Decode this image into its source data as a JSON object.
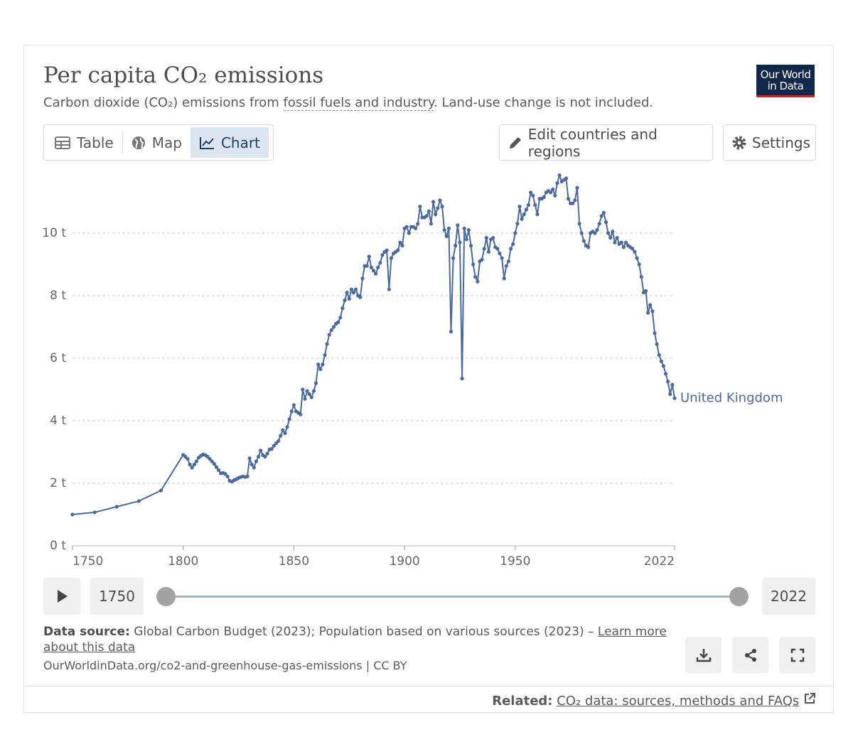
{
  "header": {
    "title": "Per capita CO₂ emissions",
    "subtitle_start": "Carbon dioxide (CO₂) emissions from ",
    "subtitle_link": "fossil fuels and industry",
    "subtitle_end": ". Land-use change is not included.",
    "logo": [
      "Our World",
      "in Data"
    ]
  },
  "tabs": [
    "Table",
    "Map",
    "Chart"
  ],
  "buttons": [
    "Edit countries and regions",
    "Settings"
  ],
  "timeline": {
    "start": 1750,
    "end": 2022
  },
  "footer": {
    "source_label": "Data source:",
    "source_text": "Global Carbon Budget (2023); Population based on various sources (2023) – ",
    "learn_more": "Learn more about this data",
    "url": "OurWorldinData.org/co2-and-greenhouse-gas-emissions | CC BY",
    "related_label": "Related:",
    "related_link": "CO₂ data: sources, methods and FAQs"
  },
  "chart_data": {
    "type": "line",
    "grid": true,
    "xlim": [
      1750,
      2022
    ],
    "xticks": [
      1750,
      1800,
      1850,
      1900,
      1950,
      2022
    ],
    "ylim": [
      0,
      12
    ],
    "yticks": [
      {
        "value": 0,
        "label": "0 t"
      },
      {
        "value": 2,
        "label": "2 t"
      },
      {
        "value": 4,
        "label": "4 t"
      },
      {
        "value": 6,
        "label": "6 t"
      },
      {
        "value": 8,
        "label": "8 t"
      },
      {
        "value": 10,
        "label": "10 t"
      }
    ],
    "x": [
      1750,
      1760,
      1770,
      1780,
      1790,
      1800,
      1801,
      1802,
      1803,
      1804,
      1805,
      1806,
      1807,
      1808,
      1809,
      1810,
      1811,
      1812,
      1813,
      1814,
      1815,
      1816,
      1817,
      1818,
      1819,
      1820,
      1821,
      1822,
      1823,
      1824,
      1825,
      1826,
      1827,
      1828,
      1829,
      1830,
      1831,
      1832,
      1833,
      1834,
      1835,
      1836,
      1837,
      1838,
      1839,
      1840,
      1841,
      1842,
      1843,
      1844,
      1845,
      1846,
      1847,
      1848,
      1849,
      1850,
      1851,
      1852,
      1853,
      1854,
      1855,
      1856,
      1857,
      1858,
      1859,
      1860,
      1861,
      1862,
      1863,
      1864,
      1865,
      1866,
      1867,
      1868,
      1869,
      1870,
      1871,
      1872,
      1873,
      1874,
      1875,
      1876,
      1877,
      1878,
      1879,
      1880,
      1881,
      1882,
      1883,
      1884,
      1885,
      1886,
      1887,
      1888,
      1889,
      1890,
      1891,
      1892,
      1893,
      1894,
      1895,
      1896,
      1897,
      1898,
      1899,
      1900,
      1901,
      1902,
      1903,
      1904,
      1905,
      1906,
      1907,
      1908,
      1909,
      1910,
      1911,
      1912,
      1913,
      1914,
      1915,
      1916,
      1917,
      1918,
      1919,
      1920,
      1921,
      1922,
      1923,
      1924,
      1925,
      1926,
      1927,
      1928,
      1929,
      1930,
      1931,
      1932,
      1933,
      1934,
      1935,
      1936,
      1937,
      1938,
      1939,
      1940,
      1941,
      1942,
      1943,
      1944,
      1945,
      1946,
      1947,
      1948,
      1949,
      1950,
      1951,
      1952,
      1953,
      1954,
      1955,
      1956,
      1957,
      1958,
      1959,
      1960,
      1961,
      1962,
      1963,
      1964,
      1965,
      1966,
      1967,
      1968,
      1969,
      1970,
      1971,
      1972,
      1973,
      1974,
      1975,
      1976,
      1977,
      1978,
      1979,
      1980,
      1981,
      1982,
      1983,
      1984,
      1985,
      1986,
      1987,
      1988,
      1989,
      1990,
      1991,
      1992,
      1993,
      1994,
      1995,
      1996,
      1997,
      1998,
      1999,
      2000,
      2001,
      2002,
      2003,
      2004,
      2005,
      2006,
      2007,
      2008,
      2009,
      2010,
      2011,
      2012,
      2013,
      2014,
      2015,
      2016,
      2017,
      2018,
      2019,
      2020,
      2021,
      2022
    ],
    "series": [
      {
        "name": "United Kingdom",
        "color": "#4c6a9c",
        "values": [
          1.0,
          1.07,
          1.25,
          1.43,
          1.77,
          2.91,
          2.85,
          2.78,
          2.6,
          2.5,
          2.6,
          2.7,
          2.82,
          2.88,
          2.92,
          2.9,
          2.85,
          2.78,
          2.7,
          2.62,
          2.52,
          2.42,
          2.32,
          2.33,
          2.3,
          2.22,
          2.08,
          2.05,
          2.1,
          2.13,
          2.17,
          2.2,
          2.22,
          2.2,
          2.22,
          2.8,
          2.6,
          2.5,
          2.7,
          2.85,
          3.05,
          2.9,
          2.85,
          2.95,
          3.08,
          3.1,
          3.2,
          3.28,
          3.35,
          3.52,
          3.7,
          3.6,
          3.8,
          4.05,
          4.3,
          4.5,
          4.3,
          4.25,
          4.2,
          5.0,
          4.7,
          4.95,
          4.85,
          4.75,
          4.95,
          5.2,
          5.8,
          5.65,
          5.8,
          6.1,
          6.45,
          6.75,
          6.9,
          7.0,
          7.1,
          7.15,
          7.3,
          7.6,
          7.85,
          8.1,
          7.9,
          8.2,
          8.1,
          8.2,
          8.0,
          7.95,
          8.55,
          8.95,
          8.95,
          9.25,
          8.9,
          8.8,
          8.7,
          8.9,
          9.05,
          9.3,
          9.4,
          9.45,
          8.2,
          9.2,
          9.35,
          9.4,
          9.45,
          9.7,
          9.6,
          10.15,
          10.2,
          10.0,
          10.2,
          10.2,
          10.15,
          10.3,
          10.85,
          10.5,
          10.5,
          10.55,
          10.7,
          10.3,
          11.0,
          10.6,
          10.8,
          11.05,
          10.85,
          10.1,
          9.9,
          10.15,
          6.85,
          9.2,
          9.6,
          10.25,
          9.7,
          5.35,
          10.15,
          9.8,
          10.1,
          9.6,
          9.0,
          8.6,
          8.45,
          9.1,
          9.15,
          9.5,
          9.85,
          9.4,
          9.8,
          9.85,
          9.55,
          9.5,
          9.35,
          9.2,
          8.55,
          8.95,
          9.1,
          9.5,
          9.65,
          10.0,
          10.3,
          10.85,
          10.45,
          10.6,
          10.75,
          10.9,
          11.3,
          11.2,
          10.9,
          10.6,
          11.1,
          11.1,
          11.15,
          11.3,
          11.35,
          11.3,
          11.4,
          11.2,
          11.6,
          11.85,
          11.65,
          11.7,
          11.75,
          11.1,
          10.95,
          10.95,
          11.05,
          11.45,
          10.3,
          10.0,
          9.75,
          9.6,
          9.55,
          10.0,
          10.05,
          10.0,
          10.1,
          10.3,
          10.55,
          10.65,
          10.35,
          10.0,
          9.85,
          10.05,
          9.7,
          9.85,
          9.65,
          9.7,
          9.55,
          9.7,
          9.6,
          9.55,
          9.5,
          9.4,
          9.2,
          9.0,
          8.6,
          8.1,
          8.15,
          7.45,
          7.7,
          7.5,
          6.8,
          6.45,
          6.1,
          5.9,
          5.75,
          5.5,
          5.25,
          4.85,
          5.15,
          4.72
        ]
      }
    ]
  }
}
